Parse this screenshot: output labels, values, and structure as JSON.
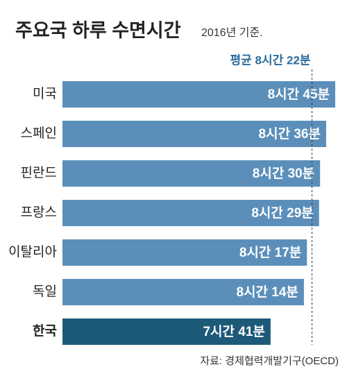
{
  "chart_data": {
    "type": "hbar",
    "title": "주요국 하루 수면시간",
    "subtitle": "2016년 기준.",
    "source": "자료: 경제협력개발기구(OECD)",
    "categories": [
      "미국",
      "스페인",
      "핀란드",
      "프랑스",
      "이탈리아",
      "독일",
      "한국"
    ],
    "values": [
      525,
      516,
      510,
      509,
      497,
      494,
      461
    ],
    "value_labels": [
      "8시간 45분",
      "8시간 36분",
      "8시간 30분",
      "8시간 29분",
      "8시간 17분",
      "8시간 14분",
      "7시간 41분"
    ],
    "colors": [
      "#5b8fba",
      "#5b8fba",
      "#5b8fba",
      "#5b8fba",
      "#5b8fba",
      "#5b8fba",
      "#1d5a78"
    ],
    "average": 502,
    "average_label": "평균 8시간 22분",
    "average_color": "#2a6b9c",
    "xlim": [
      255,
      535
    ]
  }
}
